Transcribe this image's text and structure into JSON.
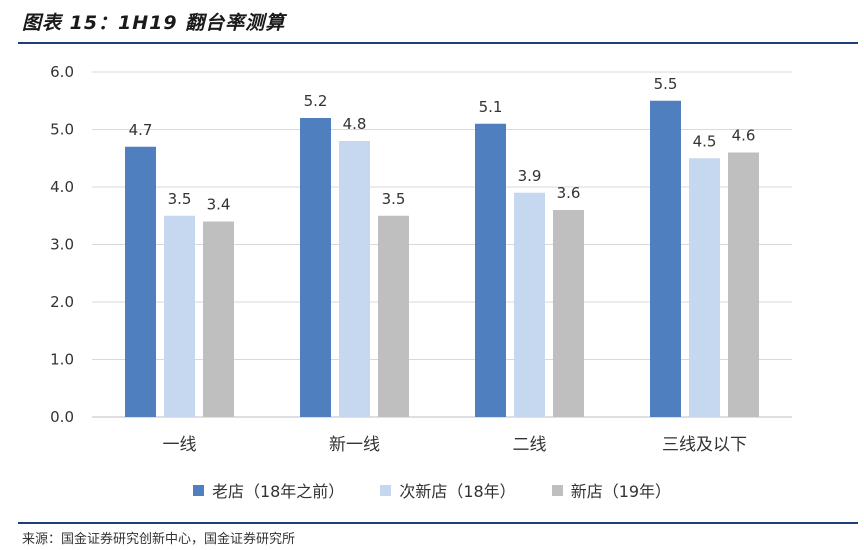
{
  "figure": {
    "title": "图表 15：1H19 翻台率测算",
    "source": "来源：国金证券研究创新中心，国金证券研究所"
  },
  "chart_data": {
    "type": "bar",
    "categories": [
      "一线",
      "新一线",
      "二线",
      "三线及以下"
    ],
    "series": [
      {
        "name": "老店（18年之前）",
        "values": [
          4.7,
          5.2,
          5.1,
          5.5
        ],
        "color": "#4f7fbf"
      },
      {
        "name": "次新店（18年）",
        "values": [
          3.5,
          4.8,
          3.9,
          4.5
        ],
        "color": "#c6d8ef"
      },
      {
        "name": "新店（19年）",
        "values": [
          3.4,
          3.5,
          3.6,
          4.6
        ],
        "color": "#bfbfbf"
      }
    ],
    "yticks": [
      "0.0",
      "1.0",
      "2.0",
      "3.0",
      "4.0",
      "5.0",
      "6.0"
    ],
    "ylim": [
      0,
      6
    ],
    "grid": true,
    "legend_position": "bottom"
  }
}
